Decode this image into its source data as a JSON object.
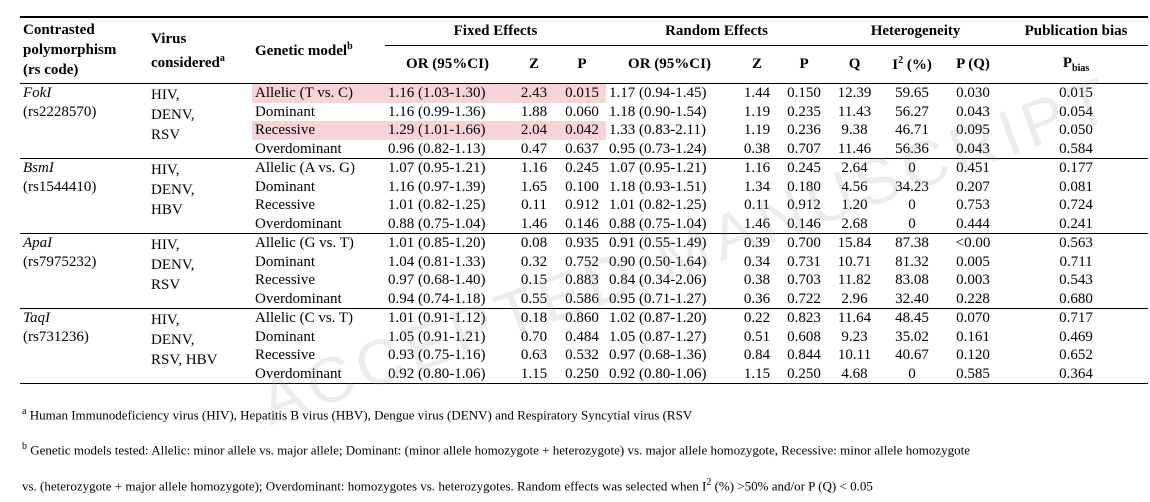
{
  "table": {
    "header": {
      "polymorphism": [
        "Contrasted",
        "polymorphism",
        "(rs code)"
      ],
      "virus": {
        "text": "Virus considered",
        "sup": "a"
      },
      "model": {
        "text": "Genetic model",
        "sup": "b"
      },
      "groups": [
        "Fixed Effects",
        "Random Effects",
        "Heterogeneity",
        "Publication bias"
      ],
      "sub": [
        "OR (95%CI)",
        "Z",
        "P",
        "OR (95%CI)",
        "Z",
        "P",
        "Q",
        {
          "text": "I",
          "sup": "2",
          "after": " (%)"
        },
        "P (Q)",
        {
          "text": "P",
          "sub": "bias"
        }
      ]
    },
    "groups": [
      {
        "name": "FokI",
        "rs": "(rs2228570)",
        "viruses": [
          "HIV,",
          "DENV,",
          "RSV"
        ],
        "rows": [
          {
            "model": "Allelic (T vs. C)",
            "values": [
              "1.16 (1.03-1.30)",
              "2.43",
              "0.015",
              "1.17 (0.94-1.45)",
              "1.44",
              "0.150",
              "12.39",
              "59.65",
              "0.030",
              "0.015"
            ]
          },
          {
            "model": "Dominant",
            "values": [
              "1.16 (0.99-1.36)",
              "1.88",
              "0.060",
              "1.18 (0.90-1.54)",
              "1.19",
              "0.235",
              "11.43",
              "56.27",
              "0.043",
              "0.054"
            ]
          },
          {
            "model": "Recessive",
            "values": [
              "1.29 (1.01-1.66)",
              "2.04",
              "0.042",
              "1.33 (0.83-2.11)",
              "1.19",
              "0.236",
              "9.38",
              "46.71",
              "0.095",
              "0.050"
            ]
          },
          {
            "model": "Overdominant",
            "values": [
              "0.96 (0.82-1.13)",
              "0.47",
              "0.637",
              "0.95 (0.73-1.24)",
              "0.38",
              "0.707",
              "11.46",
              "56.36",
              "0.043",
              "0.584"
            ]
          }
        ]
      },
      {
        "name": "BsmI",
        "rs": "(rs1544410)",
        "viruses": [
          "HIV,",
          "DENV,",
          "HBV"
        ],
        "rows": [
          {
            "model": "Allelic (A vs. G)",
            "values": [
              "1.07 (0.95-1.21)",
              "1.16",
              "0.245",
              "1.07 (0.95-1.21)",
              "1.16",
              "0.245",
              "2.64",
              "0",
              "0.451",
              "0.177"
            ]
          },
          {
            "model": "Dominant",
            "values": [
              "1.16 (0.97-1.39)",
              "1.65",
              "0.100",
              "1.18 (0.93-1.51)",
              "1.34",
              "0.180",
              "4.56",
              "34.23",
              "0.207",
              "0.081"
            ]
          },
          {
            "model": "Recessive",
            "values": [
              "1.01 (0.82-1.25)",
              "0.11",
              "0.912",
              "1.01 (0.82-1.25)",
              "0.11",
              "0.912",
              "1.20",
              "0",
              "0.753",
              "0.724"
            ]
          },
          {
            "model": "Overdominant",
            "values": [
              "0.88 (0.75-1.04)",
              "1.46",
              "0.146",
              "0.88 (0.75-1.04)",
              "1.46",
              "0.146",
              "2.68",
              "0",
              "0.444",
              "0.241"
            ]
          }
        ]
      },
      {
        "name": "ApaI",
        "rs": "(rs7975232)",
        "viruses": [
          "HIV,",
          "DENV,",
          "RSV"
        ],
        "rows": [
          {
            "model": "Allelic (G vs. T)",
            "values": [
              "1.01 (0.85-1.20)",
              "0.08",
              "0.935",
              "0.91 (0.55-1.49)",
              "0.39",
              "0.700",
              "15.84",
              "87.38",
              "<0.00",
              "0.563"
            ]
          },
          {
            "model": "Dominant",
            "values": [
              "1.04 (0.81-1.33)",
              "0.32",
              "0.752",
              "0.90 (0.50-1.64)",
              "0.34",
              "0.731",
              "10.71",
              "81.32",
              "0.005",
              "0.711"
            ]
          },
          {
            "model": "Recessive",
            "values": [
              "0.97 (0.68-1.40)",
              "0.15",
              "0.883",
              "0.84 (0.34-2.06)",
              "0.38",
              "0.703",
              "11.82",
              "83.08",
              "0.003",
              "0.543"
            ]
          },
          {
            "model": "Overdominant",
            "values": [
              "0.94 (0.74-1.18)",
              "0.55",
              "0.586",
              "0.95 (0.71-1.27)",
              "0.36",
              "0.722",
              "2.96",
              "32.40",
              "0.228",
              "0.680"
            ]
          }
        ]
      },
      {
        "name": "TaqI",
        "rs": "(rs731236)",
        "viruses": [
          "HIV,",
          "DENV,",
          "RSV, HBV"
        ],
        "rows": [
          {
            "model": "Allelic (C vs. T)",
            "values": [
              "1.01 (0.91-1.12)",
              "0.18",
              "0.860",
              "1.02 (0.87-1.20)",
              "0.22",
              "0.823",
              "11.64",
              "48.45",
              "0.070",
              "0.717"
            ]
          },
          {
            "model": "Dominant",
            "values": [
              "1.05 (0.91-1.21)",
              "0.70",
              "0.484",
              "1.05 (0.87-1.27)",
              "0.51",
              "0.608",
              "9.23",
              "35.02",
              "0.161",
              "0.469"
            ]
          },
          {
            "model": "Recessive",
            "values": [
              "0.93 (0.75-1.16)",
              "0.63",
              "0.532",
              "0.97 (0.68-1.36)",
              "0.84",
              "0.844",
              "10.11",
              "40.67",
              "0.120",
              "0.652"
            ]
          },
          {
            "model": "Overdominant",
            "values": [
              "0.92 (0.80-1.06)",
              "1.15",
              "0.250",
              "0.92 (0.80-1.06)",
              "1.15",
              "0.250",
              "4.68",
              "0",
              "0.585",
              "0.364"
            ]
          }
        ]
      }
    ]
  },
  "footnotes": [
    {
      "marker": "a",
      "text": "Human Immunodeficiency virus (HIV), Hepatitis B virus (HBV), Dengue virus (DENV) and Respiratory Syncytial virus (RSV"
    },
    {
      "marker": "b",
      "text": "Genetic models tested: Allelic: minor allele vs. major allele; Dominant: (minor allele homozygote + heterozygote) vs. major allele homozygote, Recessive: minor allele homozygote",
      "text2": "vs. (heterozygote + major allele homozygote); Overdominant: homozygotes vs. heterozygotes. Random effects was selected when I",
      "sup": "2",
      "after": " (%) >50% and/or P (Q) < 0.05"
    }
  ],
  "watermark": "ACCEPTED MANUSCRIPT"
}
